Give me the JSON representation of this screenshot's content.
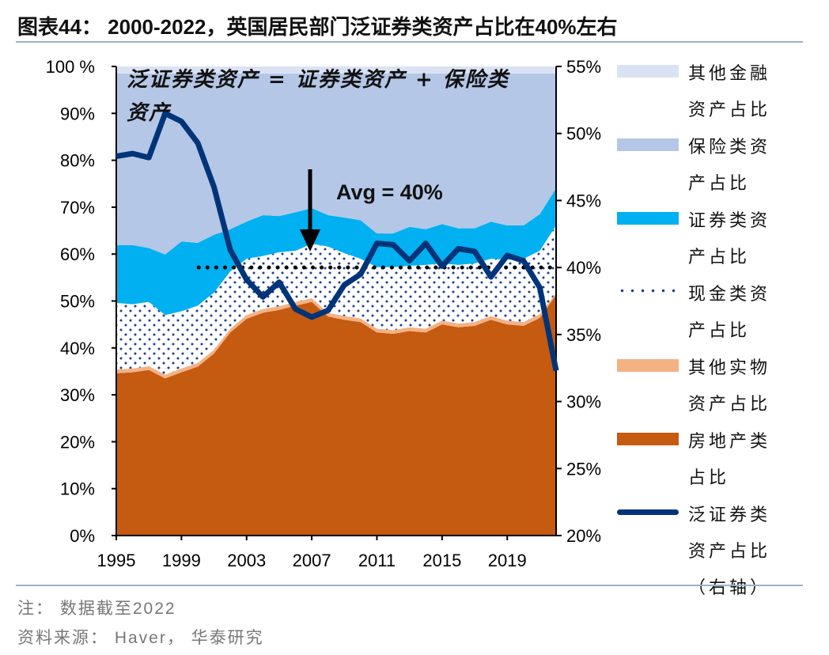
{
  "title": "图表44： 2000-2022，英国居民部门泛证券类资产占比在40%左右",
  "notes": {
    "note": "注： 数据截至2022",
    "source": "资料来源： Haver， 华泰研究"
  },
  "chart_data": {
    "type": "area",
    "x": [
      1995,
      1996,
      1997,
      1998,
      1999,
      2000,
      2001,
      2002,
      2003,
      2004,
      2005,
      2006,
      2007,
      2008,
      2009,
      2010,
      2011,
      2012,
      2013,
      2014,
      2015,
      2016,
      2017,
      2018,
      2019,
      2020,
      2021,
      2022
    ],
    "x_ticks": [
      "1995",
      "1999",
      "2003",
      "2007",
      "2011",
      "2015",
      "2019"
    ],
    "y_left": {
      "range": [
        0,
        100
      ],
      "ticks": [
        "0%",
        "10%",
        "20%",
        "30%",
        "40%",
        "50%",
        "60%",
        "70%",
        "80%",
        "90%",
        "100 %"
      ]
    },
    "y_right": {
      "range": [
        20,
        55
      ],
      "ticks": [
        "20%",
        "25%",
        "30%",
        "35%",
        "40%",
        "45%",
        "50%",
        "55%"
      ]
    },
    "series": [
      {
        "name": "房地产类占比",
        "type": "stacked-area",
        "axis": "left",
        "color": "#c55a11",
        "values": [
          34.6,
          34.8,
          35.3,
          33.5,
          34.8,
          36,
          38.8,
          43.3,
          46.2,
          47.5,
          48.1,
          49,
          49.8,
          46.7,
          46,
          45.5,
          43.3,
          43,
          43.6,
          43.3,
          45,
          44.4,
          44.7,
          46,
          45,
          44.7,
          46.4,
          51.3
        ]
      },
      {
        "name": "其他实物资产占比",
        "type": "stacked-area",
        "axis": "left",
        "color": "#f4b183",
        "values": [
          0.8,
          0.8,
          0.8,
          0.8,
          0.8,
          0.8,
          0.8,
          0.8,
          0.8,
          0.8,
          0.8,
          0.8,
          0.8,
          0.8,
          0.8,
          0.8,
          0.8,
          0.8,
          0.8,
          0.8,
          0.8,
          0.8,
          0.8,
          0.8,
          0.8,
          0.8,
          0.8,
          0.4
        ]
      },
      {
        "name": "现金类资产占比",
        "type": "stacked-area",
        "axis": "left",
        "color": "#1f3c88",
        "pattern": "dots",
        "values": [
          14.2,
          13.7,
          13.7,
          12.7,
          12.2,
          12.2,
          12.2,
          12.2,
          12,
          11.3,
          11.5,
          10.9,
          11.6,
          14.1,
          13.4,
          12.7,
          13.1,
          13.4,
          13.1,
          13.6,
          12.2,
          12.5,
          12.5,
          12.2,
          13,
          13.5,
          13.5,
          14.4
        ]
      },
      {
        "name": "证券类资产占比",
        "type": "stacked-area",
        "axis": "left",
        "color": "#00b0f0",
        "values": [
          12.3,
          12.6,
          11.5,
          12.9,
          14.9,
          13.4,
          12.3,
          9,
          7.9,
          8.7,
          7.7,
          8.2,
          7.6,
          6.7,
          7.6,
          8.2,
          7.2,
          7.2,
          8.3,
          7.6,
          8.4,
          7.8,
          7.5,
          7.9,
          7.3,
          7.1,
          7.8,
          7.9
        ]
      },
      {
        "name": "保险类资产占比",
        "type": "stacked-area",
        "axis": "left",
        "color": "#b4c7e7",
        "values": [
          36.6,
          36.6,
          37.2,
          38.6,
          35.8,
          36.1,
          34.4,
          33.2,
          31.6,
          30.2,
          30.4,
          29.6,
          28.7,
          30.2,
          30.7,
          31.3,
          34.1,
          34.1,
          32.7,
          33.2,
          32.1,
          33,
          33,
          31.6,
          32.4,
          32.4,
          30,
          24.5
        ]
      },
      {
        "name": "其他金融资产占比",
        "type": "stacked-area",
        "axis": "left",
        "color": "#dae3f3",
        "values": [
          1.5,
          1.5,
          1.5,
          1.5,
          1.5,
          1.5,
          1.5,
          1.5,
          1.5,
          1.5,
          1.5,
          1.5,
          1.5,
          1.5,
          1.5,
          1.5,
          1.5,
          1.5,
          1.5,
          1.5,
          1.5,
          1.5,
          1.5,
          1.5,
          1.5,
          1.5,
          1.5,
          1.5
        ]
      },
      {
        "name": "泛证券类资产占比（右轴）",
        "type": "line",
        "axis": "right",
        "color": "#003478",
        "values": [
          48.3,
          48.5,
          48.2,
          51.5,
          50.9,
          49.3,
          46,
          41.3,
          39.1,
          37.8,
          38.9,
          36.9,
          36.3,
          36.8,
          38.7,
          39.5,
          41.8,
          41.7,
          40.5,
          41.8,
          40.1,
          41.4,
          41.2,
          39.3,
          40.9,
          40.5,
          38.5,
          32.3
        ]
      }
    ],
    "reference_line": {
      "value": 40,
      "axis": "right",
      "from": 2002,
      "to": 2022,
      "style": "dotted"
    },
    "annotations": {
      "definition": "泛证券类资产 = 证券类资产 + 保险类资产",
      "avg": "Avg = 40%"
    },
    "legend": {
      "placement": "right"
    }
  }
}
